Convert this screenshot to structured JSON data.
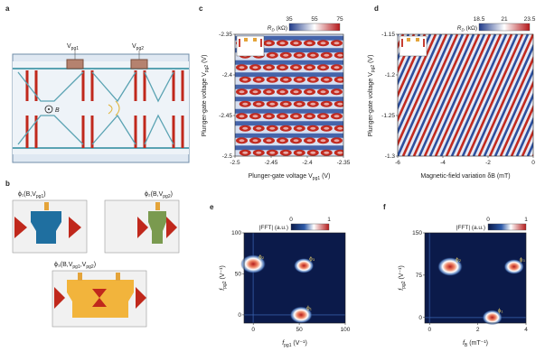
{
  "panels": {
    "a": {
      "letter": "a",
      "vpg1": "V",
      "vpg1_sub": "pg1",
      "vpg2": "V",
      "vpg2_sub": "pg2",
      "field": "B"
    },
    "b": {
      "letter": "b",
      "phi1": "ϕ₁(B,V",
      "phi1_sub": "pg1",
      "phi1_end": ")",
      "phi2": "ϕ₂(B,V",
      "phi2_sub": "pg2",
      "phi2_end": ")",
      "phi3": "ϕ₃(B,V",
      "phi3_sub": "pg1",
      "phi3_mid": ",V",
      "phi3_sub2": "pg2",
      "phi3_end": ")"
    },
    "c": {
      "letter": "c"
    },
    "d": {
      "letter": "d"
    },
    "e": {
      "letter": "e"
    },
    "f": {
      "letter": "f"
    }
  },
  "colors": {
    "blue": "#2f4f9a",
    "red": "#c0281c",
    "white": "#ffffff",
    "channel": "#5aa3b3",
    "gate": "#b5826f",
    "phi1": "#1f6fa0",
    "phi2": "#7a9a4f",
    "phi3": "#f2b43c"
  },
  "chart_data": [
    {
      "type": "heatmap",
      "panel": "c",
      "colorbar": {
        "label": "R",
        "label_sub": "D",
        "unit": " (kΩ)",
        "ticks": [
          "35",
          "55",
          "75"
        ],
        "range": [
          35,
          75
        ]
      },
      "xlabel": "Plunger-gate voltage V",
      "xlabel_sub": "pg1",
      "xlabel_unit": " (V)",
      "ylabel": "Plunger-gate voltage V",
      "ylabel_sub": "pg2",
      "ylabel_unit": " (V)",
      "xlim": [
        -2.5,
        -2.35
      ],
      "ylim": [
        -2.5,
        -2.35
      ],
      "xticks": [
        "-2.5",
        "-2.45",
        "-2.4",
        "-2.35"
      ],
      "yticks": [
        "-2.35",
        "-2.4",
        "-2.45",
        "-2.5"
      ]
    },
    {
      "type": "heatmap",
      "panel": "d",
      "colorbar": {
        "label": "R",
        "label_sub": "D",
        "unit": " (kΩ)",
        "ticks": [
          "18.5",
          "21",
          "23.5"
        ],
        "range": [
          18.5,
          23.5
        ]
      },
      "xlabel": "Magnetic-field variation δB (mT)",
      "ylabel": "Plunger-gate voltage V",
      "ylabel_sub": "pg2",
      "ylabel_unit": " (V)",
      "xlim": [
        -6,
        0
      ],
      "ylim": [
        -1.3,
        -1.15
      ],
      "xticks": [
        "-6",
        "-4",
        "-2",
        "0"
      ],
      "yticks": [
        "-1.15",
        "-1.2",
        "-1.25",
        "-1.3"
      ]
    },
    {
      "type": "heatmap",
      "panel": "e",
      "colorbar": {
        "label": "|FFT| (a.u.)",
        "ticks": [
          "0",
          "1"
        ],
        "range": [
          0,
          1
        ]
      },
      "xlabel": "f",
      "xlabel_sub": "pg1",
      "xlabel_unit": " (V⁻¹)",
      "ylabel": "f",
      "ylabel_sub": "pg2",
      "ylabel_unit": " (V⁻¹)",
      "xlim": [
        -10,
        100
      ],
      "ylim": [
        -10,
        100
      ],
      "xticks": [
        "0",
        "50",
        "100"
      ],
      "yticks": [
        "100",
        "50",
        "0"
      ],
      "peaks": [
        {
          "label": "ϕ₂",
          "x": 0,
          "y": 62,
          "w": 1.0
        },
        {
          "label": "ϕ₃",
          "x": 55,
          "y": 60,
          "w": 0.8
        },
        {
          "label": "ϕ₁",
          "x": 52,
          "y": 0,
          "w": 0.9
        }
      ]
    },
    {
      "type": "heatmap",
      "panel": "f",
      "colorbar": {
        "label": "|FFT| (a.u.)",
        "ticks": [
          "0",
          "1"
        ],
        "range": [
          0,
          1
        ]
      },
      "xlabel": "f",
      "xlabel_sub": "B",
      "xlabel_unit": " (mT⁻¹)",
      "ylabel": "f",
      "ylabel_sub": "pg2",
      "ylabel_unit": " (V⁻¹)",
      "xlim": [
        -0.2,
        4
      ],
      "ylim": [
        -10,
        150
      ],
      "xticks": [
        "0",
        "2",
        "4"
      ],
      "yticks": [
        "150",
        "75",
        "0"
      ],
      "peaks": [
        {
          "label": "ϕ₂",
          "x": 0.85,
          "y": 90,
          "w": 1.0
        },
        {
          "label": "ϕ₃",
          "x": 3.5,
          "y": 90,
          "w": 0.8
        },
        {
          "label": "ϕ₁",
          "x": 2.6,
          "y": 0,
          "w": 0.8
        }
      ]
    }
  ]
}
